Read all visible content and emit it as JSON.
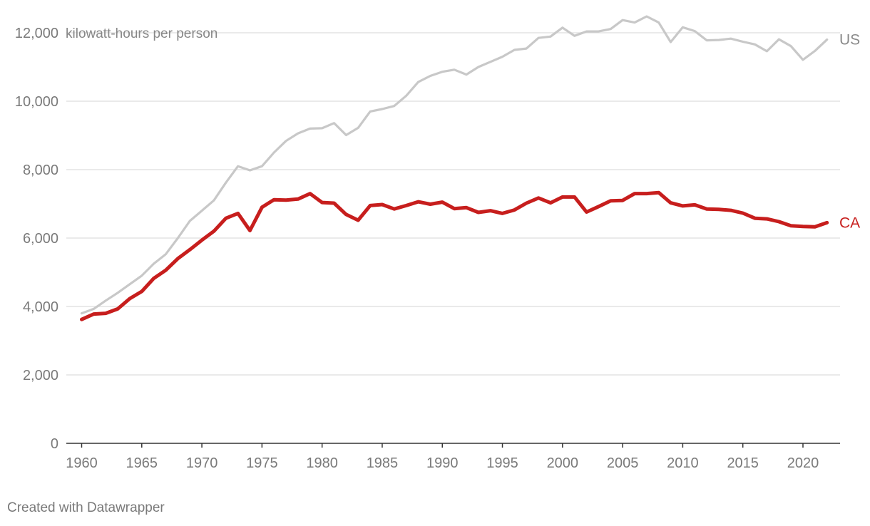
{
  "chart_data": {
    "type": "line",
    "title": "",
    "unit_label": "kilowatt-hours per person",
    "ylim": [
      0,
      12000
    ],
    "yticks": [
      0,
      2000,
      4000,
      6000,
      8000,
      10000,
      12000
    ],
    "ytick_labels": [
      "0",
      "2,000",
      "4,000",
      "6,000",
      "8,000",
      "10,000",
      "12,000"
    ],
    "xticks": [
      1960,
      1965,
      1970,
      1975,
      1980,
      1985,
      1990,
      1995,
      2000,
      2005,
      2010,
      2015,
      2020
    ],
    "xtick_labels": [
      "1960",
      "1965",
      "1970",
      "1975",
      "1980",
      "1985",
      "1990",
      "1995",
      "2000",
      "2005",
      "2010",
      "2015",
      "2020"
    ],
    "x": [
      1960,
      1961,
      1962,
      1963,
      1964,
      1965,
      1966,
      1967,
      1968,
      1969,
      1970,
      1971,
      1972,
      1973,
      1974,
      1975,
      1976,
      1977,
      1978,
      1979,
      1980,
      1981,
      1982,
      1983,
      1984,
      1985,
      1986,
      1987,
      1988,
      1989,
      1990,
      1991,
      1992,
      1993,
      1994,
      1995,
      1996,
      1997,
      1998,
      1999,
      2000,
      2001,
      2002,
      2003,
      2004,
      2005,
      2006,
      2007,
      2008,
      2009,
      2010,
      2011,
      2012,
      2013,
      2014,
      2015,
      2016,
      2017,
      2018,
      2019,
      2020,
      2021,
      2022
    ],
    "series": [
      {
        "name": "US",
        "color": "#c8c8c8",
        "values": [
          3800,
          3930,
          4170,
          4400,
          4650,
          4900,
          5250,
          5530,
          6000,
          6500,
          6800,
          7100,
          7620,
          8100,
          7980,
          8100,
          8500,
          8840,
          9060,
          9200,
          9210,
          9360,
          9010,
          9220,
          9700,
          9770,
          9860,
          10160,
          10560,
          10740,
          10860,
          10920,
          10780,
          11000,
          11150,
          11300,
          11500,
          11540,
          11850,
          11890,
          12150,
          11910,
          12040,
          12040,
          12110,
          12370,
          12300,
          12480,
          12300,
          11730,
          12160,
          12050,
          11780,
          11790,
          11830,
          11740,
          11660,
          11460,
          11810,
          11610,
          11210,
          11470,
          11800
        ]
      },
      {
        "name": "CA",
        "color": "#c71e1d",
        "values": [
          3620,
          3780,
          3800,
          3930,
          4230,
          4440,
          4820,
          5060,
          5400,
          5660,
          5940,
          6200,
          6580,
          6720,
          6220,
          6900,
          7120,
          7110,
          7140,
          7300,
          7040,
          7020,
          6690,
          6520,
          6950,
          6980,
          6850,
          6950,
          7060,
          6990,
          7050,
          6860,
          6890,
          6750,
          6800,
          6720,
          6820,
          7020,
          7170,
          7030,
          7200,
          7200,
          6760,
          6920,
          7090,
          7100,
          7300,
          7300,
          7330,
          7030,
          6940,
          6970,
          6850,
          6840,
          6810,
          6730,
          6580,
          6560,
          6480,
          6360,
          6340,
          6330,
          6450
        ]
      }
    ],
    "grid": true,
    "legend": "inline-right"
  },
  "footer": {
    "credit": "Created with Datawrapper"
  }
}
